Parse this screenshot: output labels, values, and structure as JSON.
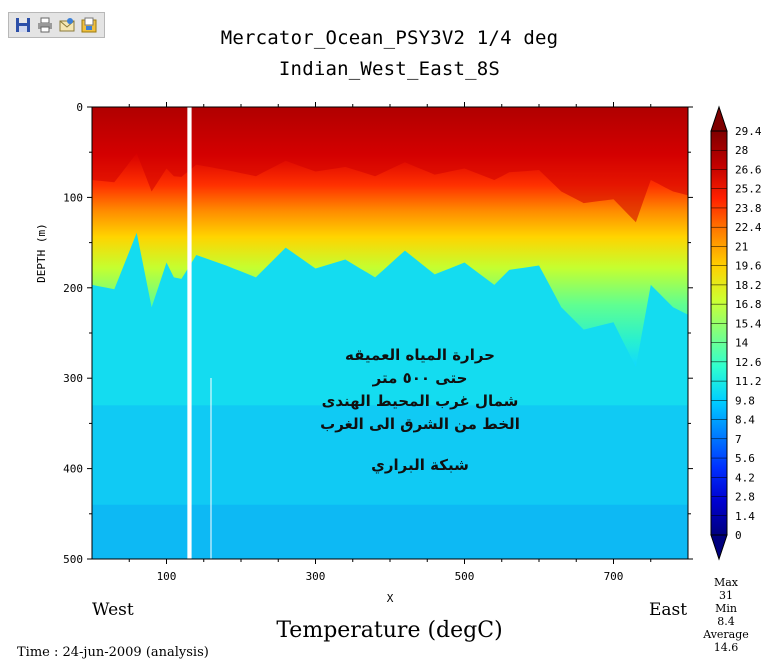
{
  "toolbar": {
    "buttons": [
      {
        "icon": "save-icon",
        "label": "save"
      },
      {
        "icon": "print-icon",
        "label": "print"
      },
      {
        "icon": "email-icon",
        "label": "email"
      },
      {
        "icon": "export-icon",
        "label": "export"
      }
    ]
  },
  "header": {
    "title": "Mercator_Ocean_PSY3V2 1/4 deg",
    "subtitle": "Indian_West_East_8S"
  },
  "side_labels": {
    "west": "West",
    "east": "East"
  },
  "annotation": {
    "lines": [
      "حرارة المياه العميقه",
      "حتى ٥٠٠ متر",
      "شمال غرب المحيط الهندى",
      "الخط من الشرق  الى الغرب",
      "شبكة البراري"
    ]
  },
  "main_label": "Temperature (degC)",
  "time_label": "Time : 24-jun-2009 (analysis)",
  "stats": {
    "max_label": "Max",
    "max": "31",
    "min_label": "Min",
    "min": "8.4",
    "avg_label": "Average",
    "avg": "14.6"
  },
  "chart_data": {
    "type": "heatmap",
    "title": "Mercator_Ocean_PSY3V2 1/4 deg",
    "subtitle": "Indian_West_East_8S",
    "xlabel": "X",
    "ylabel": "DEPTH (m)",
    "colorbar_label": "Temperature (degC)",
    "xlim": [
      0,
      800
    ],
    "ylim": [
      500,
      0
    ],
    "y_inverted": true,
    "x_ticks": [
      100,
      300,
      500,
      700
    ],
    "y_ticks": [
      0,
      100,
      200,
      300,
      400,
      500
    ],
    "colorbar_levels": [
      "0",
      "1.4",
      "2.8",
      "4.2",
      "5.6",
      "7",
      "8.4",
      "9.8",
      "11.2",
      "12.6",
      "14",
      "15.4",
      "16.8",
      "18.2",
      "19.6",
      "21",
      "22.4",
      "23.8",
      "25.2",
      "26.6",
      "28",
      "29.4"
    ],
    "colorbar_range": [
      0,
      31
    ],
    "colorbar_colors": [
      "#00007f",
      "#0000d0",
      "#0030ff",
      "#0080ff",
      "#00d0ff",
      "#30ffcf",
      "#80ff80",
      "#cfff30",
      "#ffd000",
      "#ff8000",
      "#ff2000",
      "#c00000",
      "#7f0000"
    ],
    "missing_x": [
      128,
      131
    ],
    "mixed_layer_depth_profile": {
      "x": [
        0,
        30,
        60,
        80,
        100,
        115,
        140,
        180,
        220,
        260,
        300,
        340,
        380,
        420,
        460,
        500,
        540,
        560,
        600,
        630,
        660,
        700,
        730,
        750,
        780,
        800
      ],
      "depth": [
        95,
        98,
        60,
        110,
        80,
        95,
        75,
        82,
        90,
        70,
        84,
        78,
        90,
        72,
        88,
        80,
        95,
        85,
        82,
        110,
        125,
        120,
        150,
        95,
        110,
        115
      ]
    },
    "legend_position": "right"
  }
}
